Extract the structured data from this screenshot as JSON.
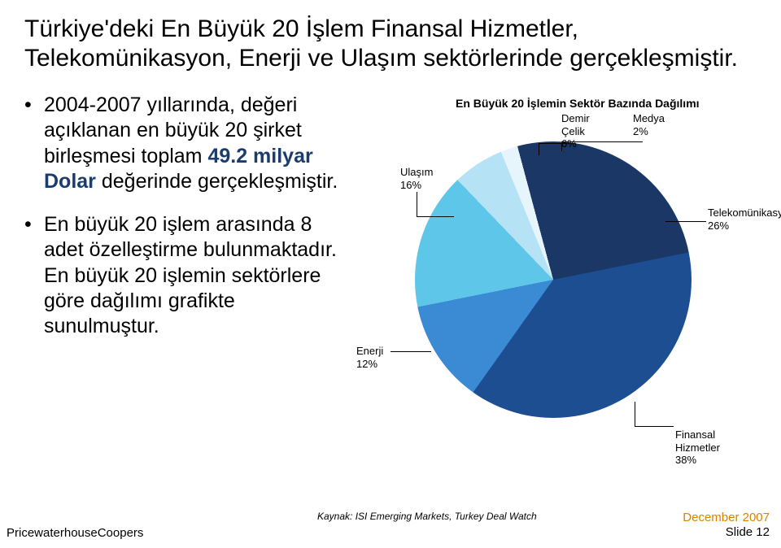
{
  "title": "Türkiye'deki En Büyük 20 İşlem Finansal Hizmetler, Telekomünikasyon, Enerji ve Ulaşım sektörlerinde gerçekleşmiştir.",
  "bullets": [
    {
      "pre": "2004-2007 yıllarında, değeri açıklanan en büyük 20 şirket birleşmesi toplam ",
      "em": "49.2 milyar Dolar",
      "post": " değerinde gerçekleşmiştir."
    },
    {
      "pre": "En büyük 20 işlem arasında 8 adet özelleştirme bulunmaktadır. En büyük 20 işlemin sektörlere göre dağılımı grafikte sunulmuştur.",
      "em": "",
      "post": ""
    }
  ],
  "chart": {
    "title": "En Büyük 20 İşlemin Sektör Bazında Dağılımı",
    "type": "pie",
    "slices": [
      {
        "label": "Telekomünikasyon",
        "value": 26,
        "color": "#1a3766"
      },
      {
        "label": "Finansal Hizmetler",
        "value": 38,
        "color": "#1e4e92"
      },
      {
        "label": "Enerji",
        "value": 12,
        "color": "#3b8bd4"
      },
      {
        "label": "Ulaşım",
        "value": 16,
        "color": "#5ec6e8"
      },
      {
        "label": "Demir Çelik",
        "value": 6,
        "color": "#b5e2f4"
      },
      {
        "label": "Medya",
        "value": 2,
        "color": "#e6f4fb"
      }
    ],
    "label_fontsize": 13,
    "title_fontsize": 14,
    "background": "#ffffff"
  },
  "source": "Kaynak: ISI Emerging Markets, Turkey Deal Watch",
  "footer": {
    "left": "PricewaterhouseCoopers",
    "date": "December 2007",
    "slide": "Slide 12",
    "date_color": "#d98200"
  },
  "colors": {
    "emphasis": "#1a3d6d",
    "text": "#000000"
  }
}
